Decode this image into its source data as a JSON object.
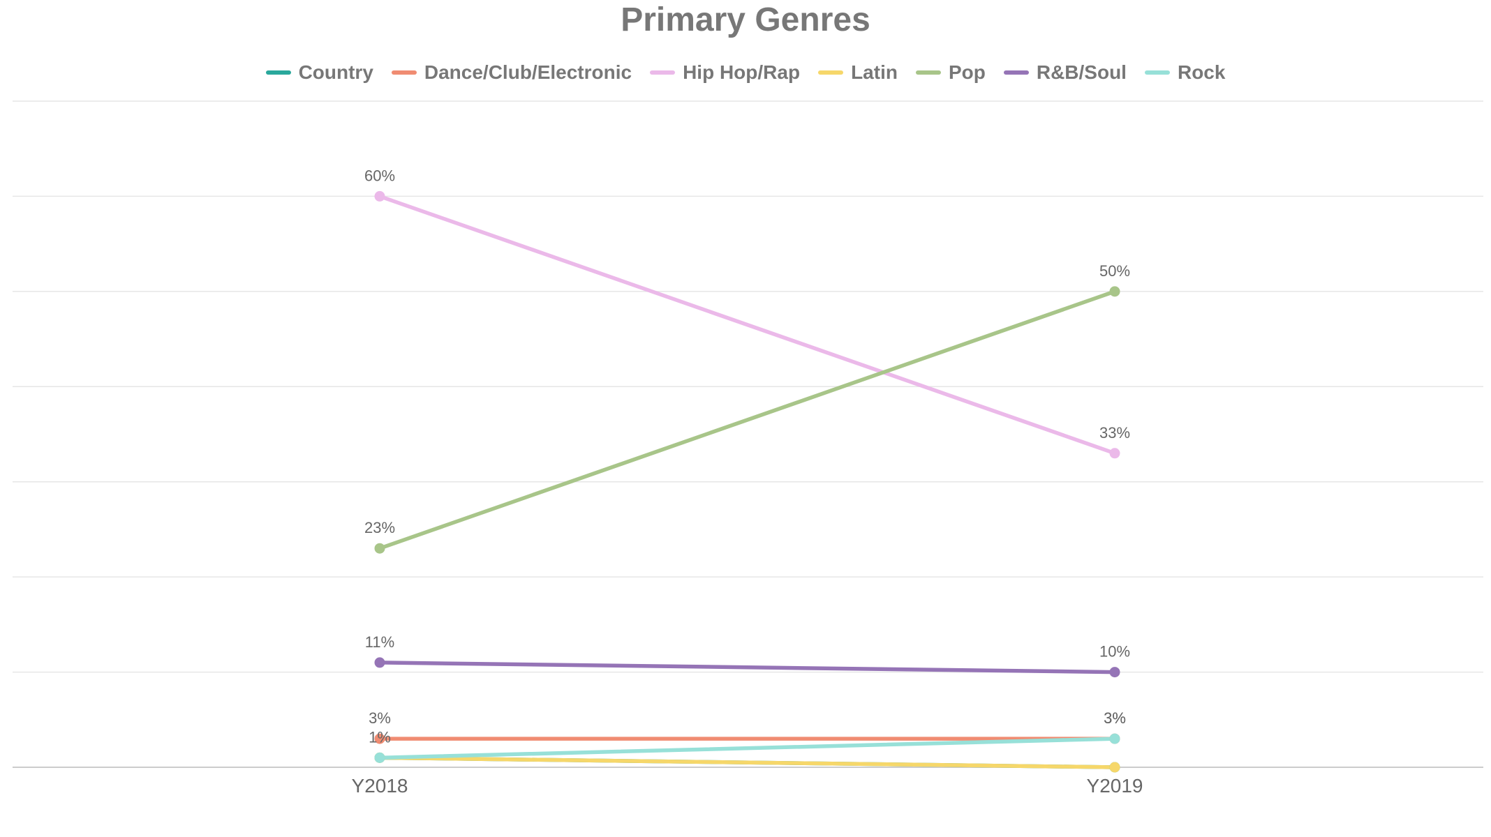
{
  "chart_data": {
    "type": "line",
    "title": "Primary Genres",
    "xlabel": "",
    "ylabel": "",
    "categories": [
      "Y2018",
      "Y2019"
    ],
    "ylim": [
      0,
      70
    ],
    "grid": true,
    "legend_placement": "top-center",
    "series": [
      {
        "name": "Country",
        "color": "#2aa89c",
        "values": [
          1,
          0
        ],
        "labels": [
          "",
          ""
        ]
      },
      {
        "name": "Dance/Club/Electronic",
        "color": "#f08c72",
        "values": [
          3,
          3
        ],
        "labels": [
          "3%",
          "3%"
        ]
      },
      {
        "name": "Hip Hop/Rap",
        "color": "#ebb9e9",
        "values": [
          60,
          33
        ],
        "labels": [
          "60%",
          "33%"
        ]
      },
      {
        "name": "Latin",
        "color": "#f6d76a",
        "values": [
          1,
          0
        ],
        "labels": [
          "",
          ""
        ]
      },
      {
        "name": "Pop",
        "color": "#a8c589",
        "values": [
          23,
          50
        ],
        "labels": [
          "23%",
          "50%"
        ]
      },
      {
        "name": "R&B/Soul",
        "color": "#9574b6",
        "values": [
          11,
          10
        ],
        "labels": [
          "11%",
          "10%"
        ]
      },
      {
        "name": "Rock",
        "color": "#97e0d8",
        "values": [
          1,
          3
        ],
        "labels": [
          "1%",
          "3%"
        ]
      }
    ]
  }
}
